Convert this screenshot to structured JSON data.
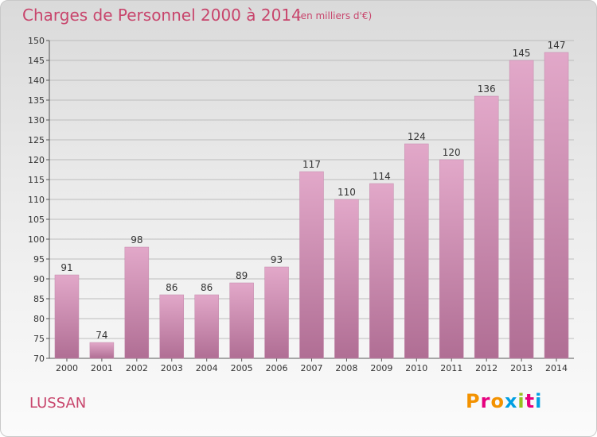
{
  "header": {
    "title": "Charges de Personnel 2000 à 2014",
    "subtitle": "(en milliers d'€)"
  },
  "footer": {
    "commune": "LUSSAN",
    "logo_text": "Proxiti",
    "logo_colors": [
      "#f39200",
      "#e6007e",
      "#f39200",
      "#009fe3",
      "#95c11f",
      "#e6007e",
      "#009fe3"
    ]
  },
  "colors": {
    "bar_top": "#e2a8c9",
    "bar_bottom": "#b06e94",
    "title": "#c8456c",
    "grid": "#bdbdbd"
  },
  "chart_data": {
    "type": "bar",
    "categories": [
      "2000",
      "2001",
      "2002",
      "2003",
      "2004",
      "2005",
      "2006",
      "2007",
      "2008",
      "2009",
      "2010",
      "2011",
      "2012",
      "2013",
      "2014"
    ],
    "values": [
      91,
      74,
      98,
      86,
      86,
      89,
      93,
      117,
      110,
      114,
      124,
      120,
      136,
      145,
      147
    ],
    "ylim": [
      70,
      150
    ],
    "yticks": [
      70,
      75,
      80,
      85,
      90,
      95,
      100,
      105,
      110,
      115,
      120,
      125,
      130,
      135,
      140,
      145,
      150
    ],
    "grid": true,
    "data_labels": true
  }
}
